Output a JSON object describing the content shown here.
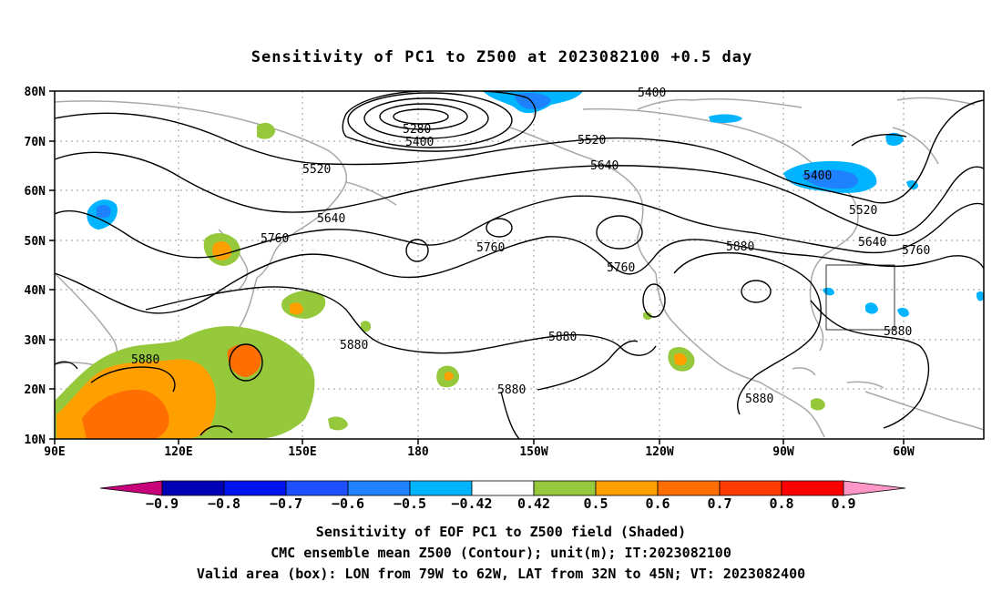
{
  "title": "Sensitivity of PC1 to Z500 at 2023082100 +0.5 day",
  "map": {
    "lon_ticks": [
      "90E",
      "120E",
      "150E",
      "180",
      "150W",
      "120W",
      "90W",
      "60W"
    ],
    "lat_ticks": [
      "80N",
      "70N",
      "60N",
      "50N",
      "40N",
      "30N",
      "20N",
      "10N"
    ],
    "contour_labels": [
      "5280",
      "5400",
      "5400",
      "5400",
      "5520",
      "5520",
      "5520",
      "5640",
      "5640",
      "5640",
      "5760",
      "5760",
      "5760",
      "5760",
      "5880",
      "5880",
      "5880",
      "5880",
      "5880",
      "5880",
      "5880"
    ],
    "valid_box": {
      "lon_from": "79W",
      "lon_to": "62W",
      "lat_from": "32N",
      "lat_to": "45N"
    }
  },
  "colorbar": {
    "labels": [
      "−0.9",
      "−0.8",
      "−0.7",
      "−0.6",
      "−0.5",
      "−0.42",
      "0.42",
      "0.5",
      "0.6",
      "0.7",
      "0.8",
      "0.9"
    ],
    "colors": [
      "#c8007a",
      "#0000b4",
      "#0014f0",
      "#1e50ff",
      "#1e82ff",
      "#00b4ff",
      "#ffffff",
      "#96c83c",
      "#ffa000",
      "#ff6e00",
      "#ff3c00",
      "#ff0000",
      "#ff96c8"
    ]
  },
  "footer": {
    "line1": "Sensitivity of EOF PC1 to Z500 field (Shaded)",
    "line2": "CMC ensemble mean Z500 (Contour); unit(m); IT:2023082100",
    "line3": "Valid area (box): LON from 79W to 62W, LAT from 32N to 45N; VT: 2023082400"
  }
}
